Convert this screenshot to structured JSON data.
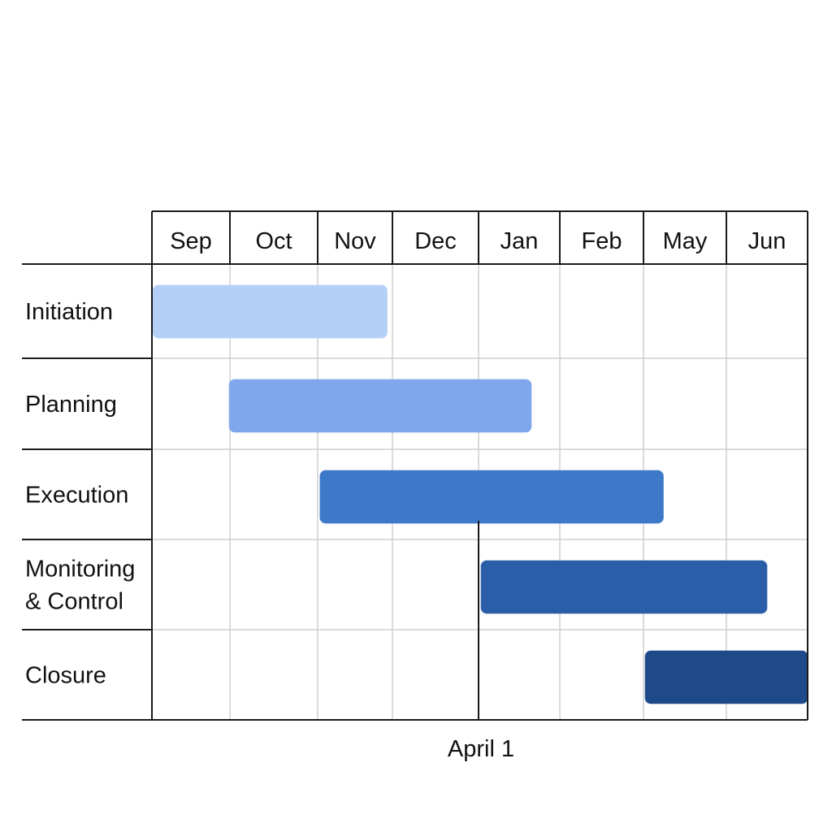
{
  "chart_data": {
    "type": "gantt",
    "title": "",
    "x_categories": [
      "Sep",
      "Oct",
      "Nov",
      "Dec",
      "Jan",
      "Feb",
      "May",
      "Jun"
    ],
    "tasks": [
      {
        "label": "Initiation",
        "lines": [
          "Initiation"
        ],
        "start": 0,
        "end": 2.93,
        "color": "#b4d0f7"
      },
      {
        "label": "Planning",
        "lines": [
          "Planning"
        ],
        "start": 0.98,
        "end": 4.65,
        "color": "#7ea8eb"
      },
      {
        "label": "Execution",
        "lines": [
          "Execution"
        ],
        "start": 2.02,
        "end": 6.24,
        "color": "#3e78c9"
      },
      {
        "label": "Monitoring & Control",
        "lines": [
          "Monitoring",
          "& Control"
        ],
        "start": 4.02,
        "end": 7.5,
        "color": "#2b5ea9"
      },
      {
        "label": "Closure",
        "lines": [
          "Closure"
        ],
        "start": 6.01,
        "end": 8.0,
        "color": "#1f4a8a"
      }
    ],
    "marker": {
      "label": "April 1",
      "position": 4.0
    },
    "grid": true
  }
}
